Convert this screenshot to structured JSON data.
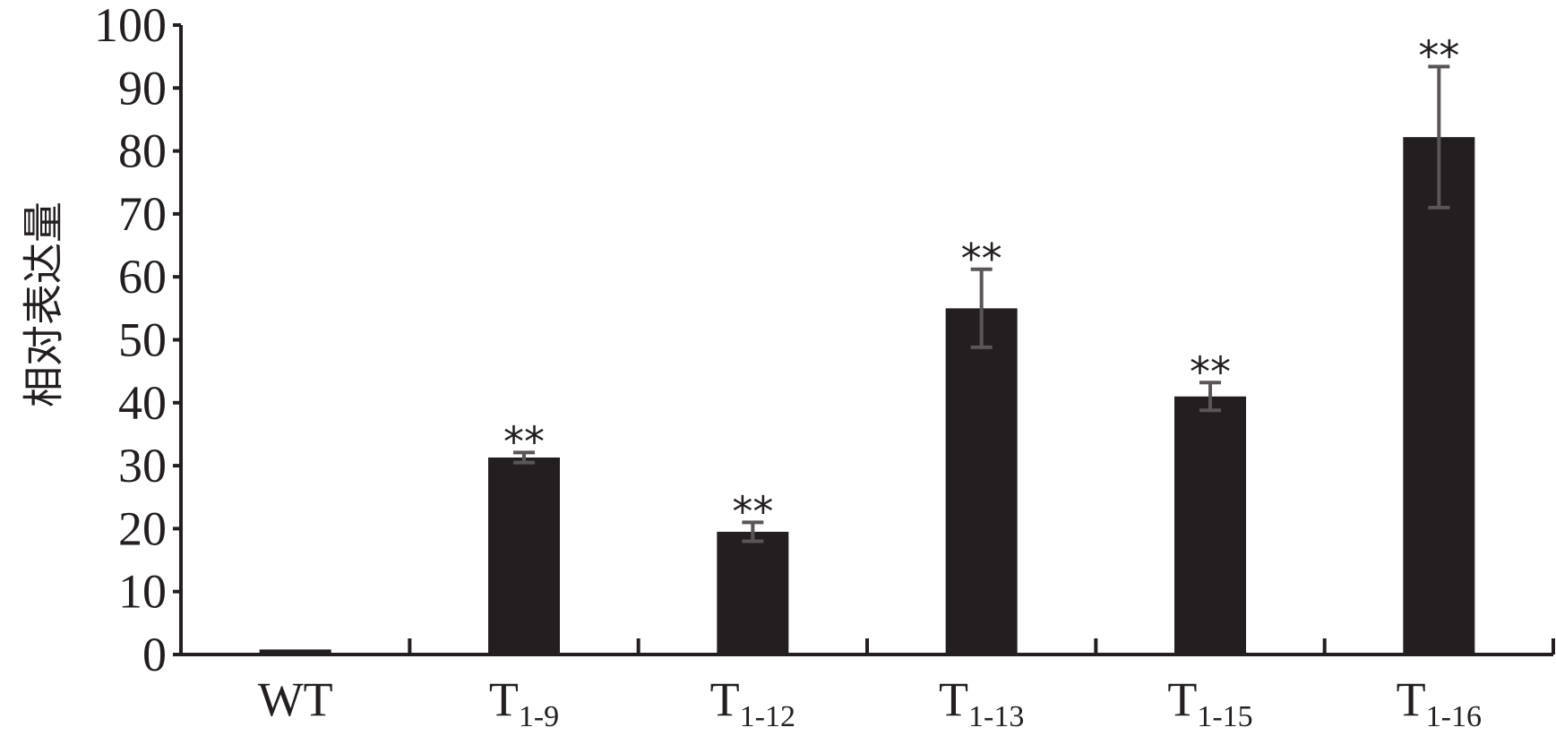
{
  "chart_data": {
    "type": "bar",
    "y_label": "相对表达量",
    "categories": [
      "WT",
      "T",
      "T",
      "T",
      "T",
      "T"
    ],
    "category_subscripts": [
      null,
      "1-9",
      "1-12",
      "1-13",
      "1-15",
      "1-16"
    ],
    "values": [
      0.8,
      31.3,
      19.5,
      55,
      41,
      82.2
    ],
    "errors": [
      null,
      0.8,
      1.5,
      6.2,
      2.2,
      11.2
    ],
    "annotations": [
      null,
      "**",
      "**",
      "**",
      "**",
      "**"
    ],
    "color": "#231f20",
    "error_color": "#5a5657",
    "ylim": [
      0,
      100
    ],
    "yticks": [
      0,
      10,
      20,
      30,
      40,
      50,
      60,
      70,
      80,
      90,
      100
    ]
  }
}
